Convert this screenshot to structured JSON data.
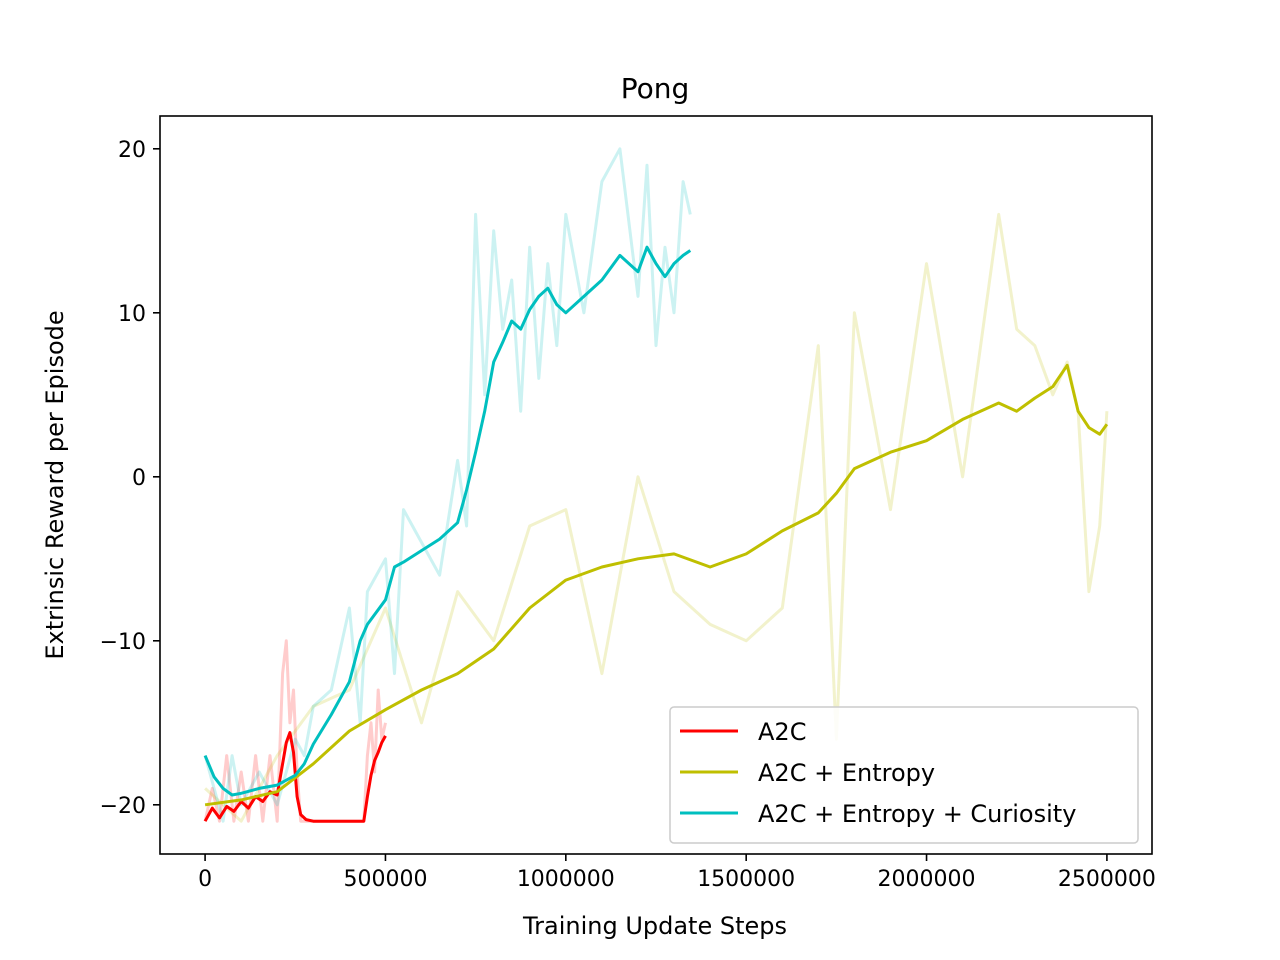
{
  "chart_data": {
    "type": "line",
    "title": "Pong",
    "xlabel": "Training Update Steps",
    "ylabel": "Extrinsic Reward per Episode",
    "xlim": [
      -125000,
      2625000
    ],
    "ylim": [
      -23,
      22
    ],
    "xticks": [
      0,
      500000,
      1000000,
      1500000,
      2000000,
      2500000
    ],
    "xtick_labels": [
      "0",
      "500000",
      "1000000",
      "1500000",
      "2000000",
      "2500000"
    ],
    "yticks": [
      -20,
      -10,
      0,
      10,
      20
    ],
    "ytick_labels": [
      "−20",
      "−10",
      "0",
      "10",
      "20"
    ],
    "grid": false,
    "legend_position": "lower-right",
    "series": [
      {
        "name": "A2C",
        "color": "#ff0000",
        "x": [
          0,
          20000,
          40000,
          60000,
          80000,
          100000,
          120000,
          140000,
          160000,
          180000,
          200000,
          215000,
          225000,
          235000,
          245000,
          255000,
          265000,
          280000,
          300000,
          350000,
          400000,
          440000,
          450000,
          460000,
          470000,
          480000,
          490000,
          500000
        ],
        "y": [
          -21,
          -20.2,
          -20.8,
          -20.1,
          -20.4,
          -19.8,
          -20.2,
          -19.5,
          -19.8,
          -19.2,
          -19.4,
          -17.5,
          -16.2,
          -15.6,
          -16.8,
          -19.5,
          -20.6,
          -20.9,
          -21,
          -21,
          -21,
          -21,
          -19.5,
          -18.2,
          -17.3,
          -16.8,
          -16.2,
          -15.8
        ],
        "raw_y": [
          -21,
          -19,
          -21,
          -17,
          -21,
          -18,
          -21,
          -17,
          -21,
          -17,
          -21,
          -12,
          -10,
          -15,
          -13,
          -18,
          -21,
          -21,
          -21,
          -21,
          -21,
          -21,
          -17,
          -15,
          -18,
          -13,
          -16,
          -15
        ]
      },
      {
        "name": "A2C + Entropy",
        "color": "#bfbf00",
        "x": [
          0,
          100000,
          200000,
          300000,
          400000,
          500000,
          600000,
          700000,
          800000,
          900000,
          1000000,
          1100000,
          1200000,
          1300000,
          1400000,
          1500000,
          1600000,
          1700000,
          1750000,
          1800000,
          1900000,
          2000000,
          2100000,
          2200000,
          2250000,
          2300000,
          2350000,
          2390000,
          2420000,
          2450000,
          2480000,
          2500000
        ],
        "y": [
          -20,
          -19.7,
          -19.2,
          -17.5,
          -15.5,
          -14.2,
          -13,
          -12,
          -10.5,
          -8,
          -6.3,
          -5.5,
          -5,
          -4.7,
          -5.5,
          -4.7,
          -3.3,
          -2.2,
          -1,
          0.5,
          1.5,
          2.2,
          3.5,
          4.5,
          4,
          4.8,
          5.5,
          6.8,
          4,
          3,
          2.6,
          3.2
        ],
        "raw_y": [
          -19,
          -21,
          -17,
          -14,
          -13,
          -8,
          -15,
          -7,
          -10,
          -3,
          -2,
          -12,
          0,
          -7,
          -9,
          -10,
          -8,
          8,
          -16,
          10,
          -2,
          13,
          0,
          16,
          9,
          8,
          5,
          7,
          4,
          -7,
          -3,
          4
        ]
      },
      {
        "name": "A2C + Entropy + Curiosity",
        "color": "#00bfbf",
        "x": [
          0,
          25000,
          50000,
          75000,
          100000,
          150000,
          200000,
          250000,
          275000,
          300000,
          350000,
          400000,
          430000,
          450000,
          500000,
          525000,
          550000,
          600000,
          650000,
          700000,
          725000,
          750000,
          775000,
          800000,
          825000,
          850000,
          875000,
          900000,
          925000,
          950000,
          975000,
          1000000,
          1050000,
          1100000,
          1150000,
          1200000,
          1225000,
          1250000,
          1275000,
          1300000,
          1325000,
          1345000
        ],
        "y": [
          -17,
          -18.3,
          -19,
          -19.4,
          -19.3,
          -19,
          -18.8,
          -18.2,
          -17.5,
          -16.3,
          -14.5,
          -12.5,
          -10,
          -9,
          -7.5,
          -5.5,
          -5.2,
          -4.5,
          -3.8,
          -2.8,
          -0.8,
          1.5,
          4,
          7,
          8.2,
          9.5,
          9,
          10.2,
          11,
          11.5,
          10.5,
          10,
          11,
          12,
          13.5,
          12.5,
          14,
          13,
          12.2,
          13,
          13.5,
          13.8
        ],
        "raw_y": [
          -17,
          -19,
          -21,
          -17,
          -20,
          -18,
          -20,
          -16,
          -17,
          -14,
          -13,
          -8,
          -15,
          -7,
          -5,
          -12,
          -2,
          -4,
          -6,
          1,
          -3,
          16,
          5,
          15,
          9,
          12,
          4,
          14,
          6,
          13,
          8,
          16,
          10,
          18,
          20,
          11,
          19,
          8,
          14,
          10,
          18,
          16
        ]
      }
    ]
  }
}
